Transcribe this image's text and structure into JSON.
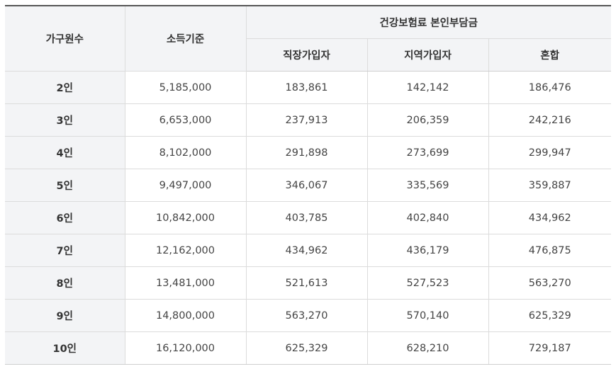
{
  "table": {
    "headers": {
      "household": "가구원수",
      "income": "소득기준",
      "premium_group": "건강보험료 본인부담금",
      "workplace": "직장가입자",
      "regional": "지역가입자",
      "mixed": "혼합"
    },
    "rows": [
      {
        "household": "2인",
        "income": "5,185,000",
        "workplace": "183,861",
        "regional": "142,142",
        "mixed": "186,476"
      },
      {
        "household": "3인",
        "income": "6,653,000",
        "workplace": "237,913",
        "regional": "206,359",
        "mixed": "242,216"
      },
      {
        "household": "4인",
        "income": "8,102,000",
        "workplace": "291,898",
        "regional": "273,699",
        "mixed": "299,947"
      },
      {
        "household": "5인",
        "income": "9,497,000",
        "workplace": "346,067",
        "regional": "335,569",
        "mixed": "359,887"
      },
      {
        "household": "6인",
        "income": "10,842,000",
        "workplace": "403,785",
        "regional": "402,840",
        "mixed": "434,962"
      },
      {
        "household": "7인",
        "income": "12,162,000",
        "workplace": "434,962",
        "regional": "436,179",
        "mixed": "476,875"
      },
      {
        "household": "8인",
        "income": "13,481,000",
        "workplace": "521,613",
        "regional": "527,523",
        "mixed": "563,270"
      },
      {
        "household": "9인",
        "income": "14,800,000",
        "workplace": "563,270",
        "regional": "570,140",
        "mixed": "625,329"
      },
      {
        "household": "10인",
        "income": "16,120,000",
        "workplace": "625,329",
        "regional": "628,210",
        "mixed": "729,187"
      }
    ]
  }
}
